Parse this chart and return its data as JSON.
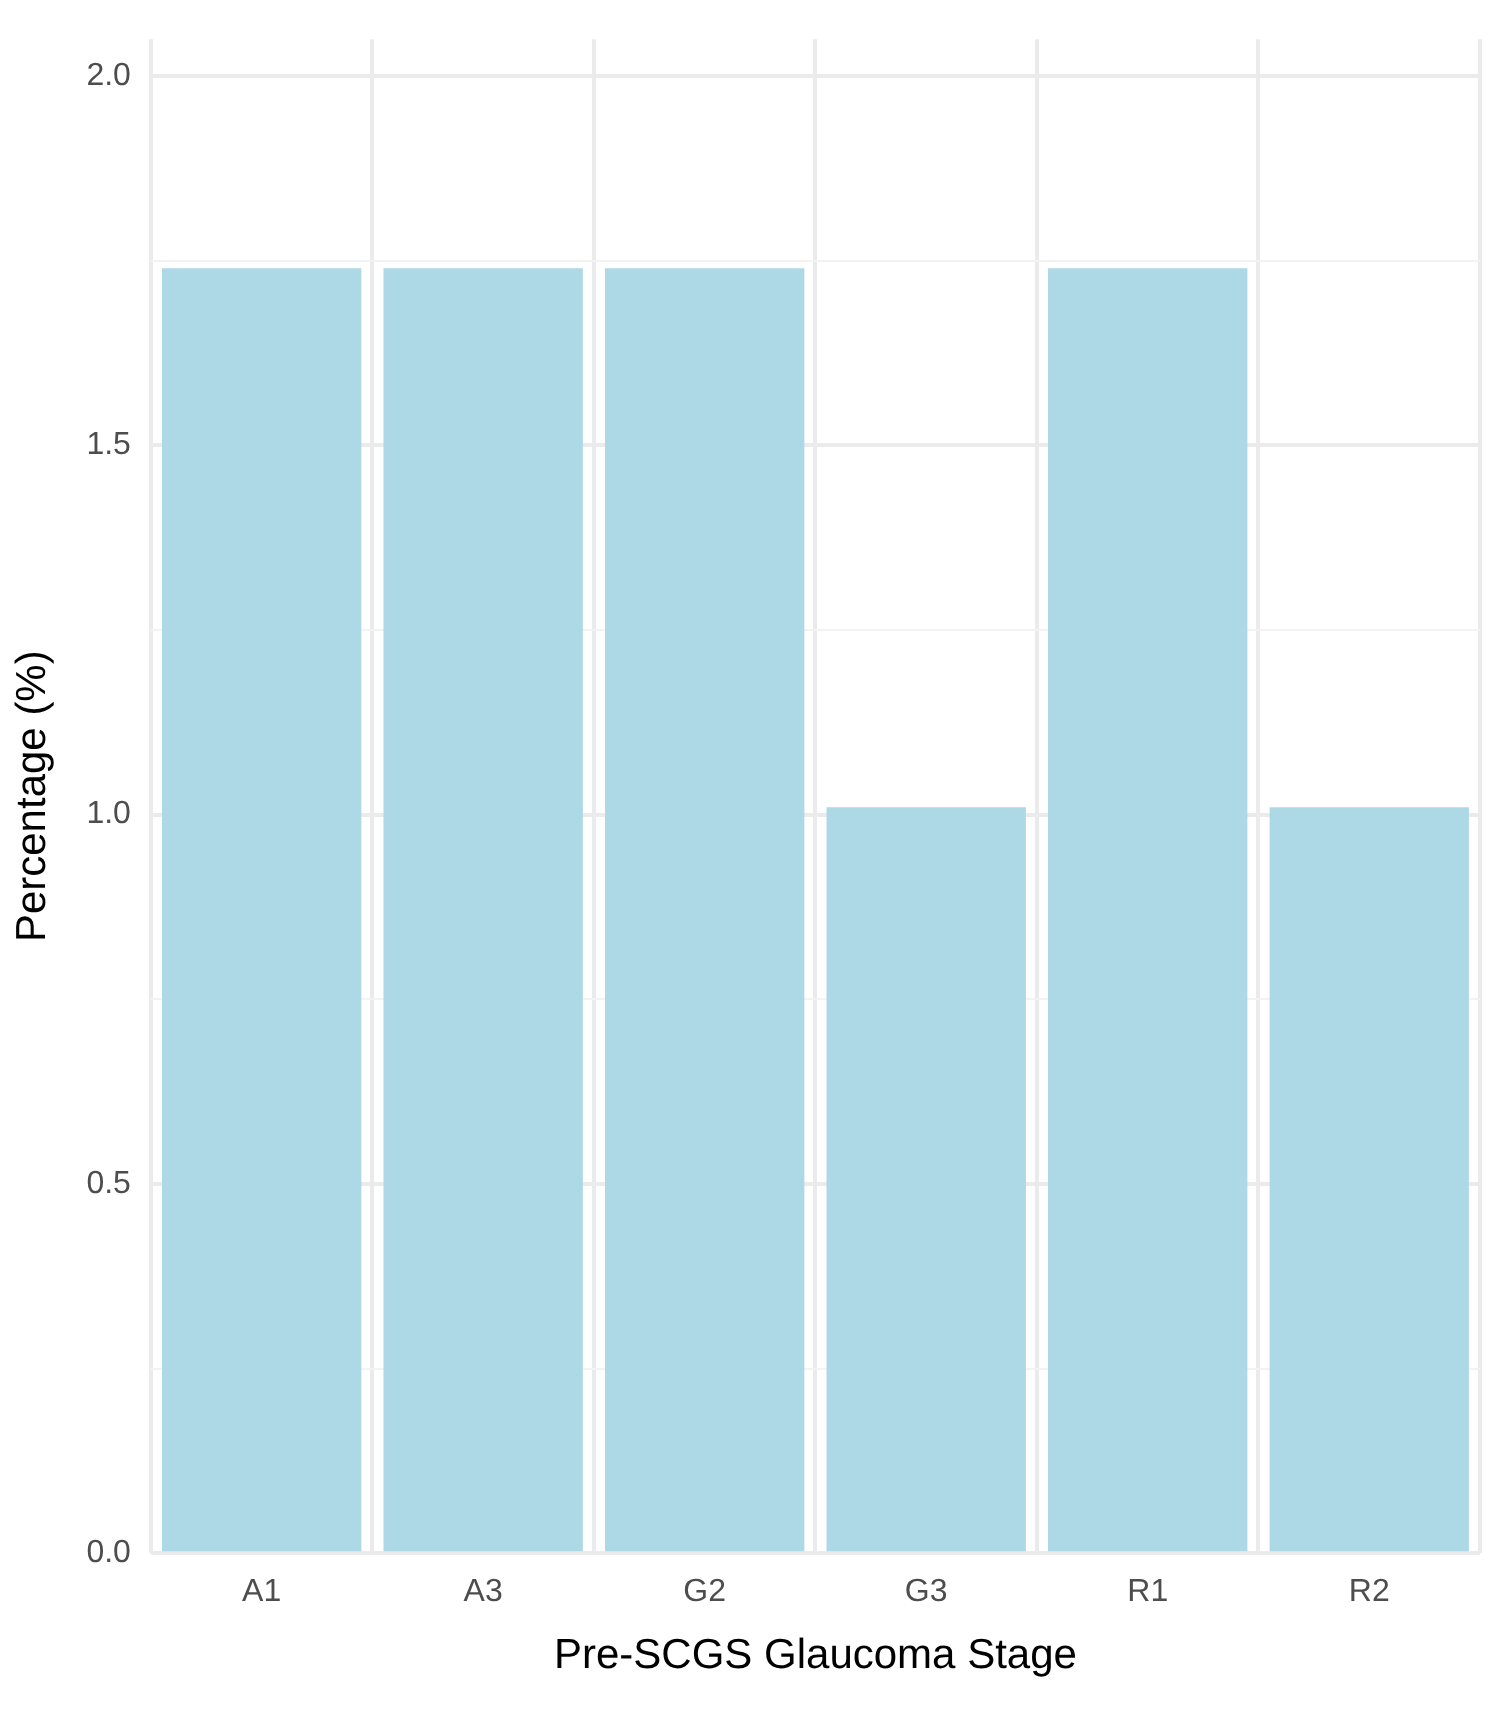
{
  "chart_data": {
    "type": "bar",
    "xlabel": "Pre-SCGS Glaucoma Stage",
    "ylabel": "Percentage (%)",
    "categories": [
      "A1",
      "A3",
      "G2",
      "G3",
      "R1",
      "R2"
    ],
    "values": [
      1.74,
      1.74,
      1.74,
      1.01,
      1.74,
      1.01
    ],
    "color": "#add8e6",
    "ylim": [
      0,
      2.05
    ],
    "yticks": [
      {
        "value": 0,
        "label": "0.0"
      },
      {
        "value": 0.25,
        "label": null
      },
      0.5,
      {
        "value": 0.75,
        "label": null
      },
      {
        "value": 1,
        "label": "1.0"
      },
      {
        "value": 1.25,
        "label": null
      },
      1.5,
      {
        "value": 1.75,
        "label": null
      },
      {
        "value": 2,
        "label": "2.0"
      }
    ],
    "grid": true
  }
}
